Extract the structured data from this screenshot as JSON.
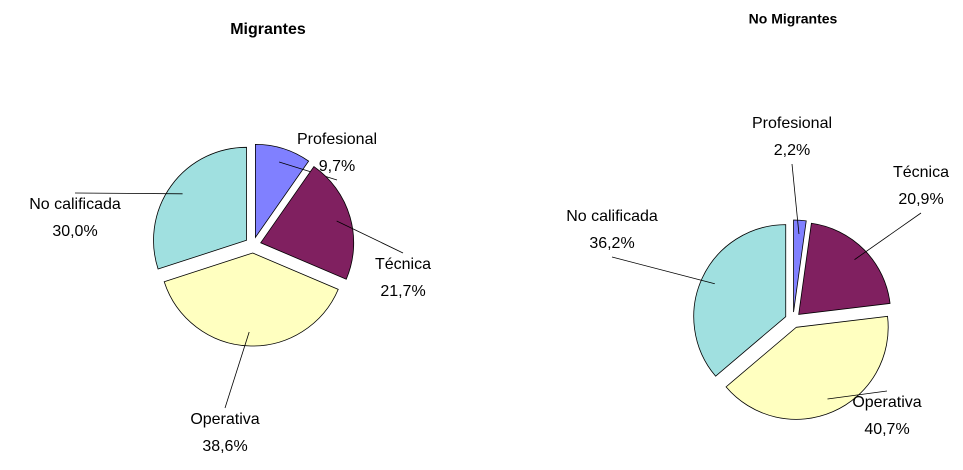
{
  "chart_data": [
    {
      "type": "pie",
      "title": "Migrantes",
      "categories": [
        "Profesional",
        "Técnica",
        "Operativa",
        "No calificada"
      ],
      "values": [
        9.7,
        21.7,
        38.6,
        30.0
      ],
      "value_labels": [
        "9,7%",
        "21,7%",
        "38,6%",
        "30,0%"
      ],
      "colors": [
        "#8080ff",
        "#802060",
        "#ffffc0",
        "#a0e0e0"
      ]
    },
    {
      "type": "pie",
      "title": "No Migrantes",
      "categories": [
        "Profesional",
        "Técnica",
        "Operativa",
        "No calificada"
      ],
      "values": [
        2.2,
        20.9,
        40.7,
        36.2
      ],
      "value_labels": [
        "2,2%",
        "20,9%",
        "40,7%",
        "36,2%"
      ],
      "colors": [
        "#8080ff",
        "#802060",
        "#ffffc0",
        "#a0e0e0"
      ]
    }
  ]
}
